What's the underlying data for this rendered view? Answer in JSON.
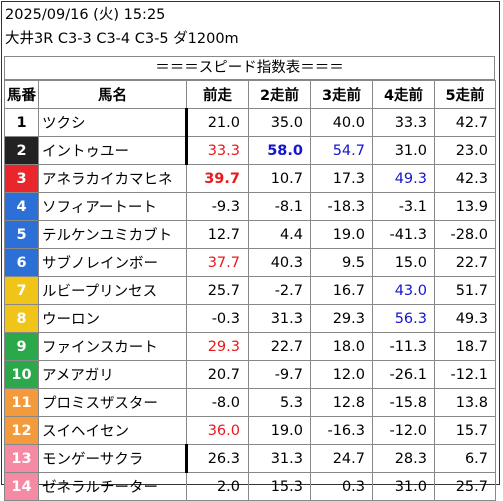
{
  "header": {
    "line1": "2025/09/16 (火) 15:25",
    "line2": "大井3R C3-3 C3-4 C3-5 ダ1200m"
  },
  "banner": "＝＝＝スピード指数表＝＝＝",
  "columns": [
    "馬番",
    "馬名",
    "前走",
    "2走前",
    "3走前",
    "4走前",
    "5走前"
  ],
  "colors": {
    "red": "#e8191c",
    "blue": "#1515cc",
    "black": "#000000"
  },
  "rows": [
    {
      "num": "1",
      "num_bg": "#ffffff",
      "num_fg": "#000000",
      "name": "ツクシ",
      "vals": [
        {
          "t": "21.0"
        },
        {
          "t": "35.0"
        },
        {
          "t": "40.0"
        },
        {
          "t": "33.3"
        },
        {
          "t": "42.7"
        }
      ]
    },
    {
      "num": "2",
      "num_bg": "#222222",
      "num_fg": "#ffffff",
      "name": "イントゥユー",
      "vals": [
        {
          "t": "33.3",
          "c": "red"
        },
        {
          "t": "58.0",
          "c": "blue",
          "b": true
        },
        {
          "t": "54.7",
          "c": "blue"
        },
        {
          "t": "31.0"
        },
        {
          "t": "23.0"
        }
      ]
    },
    {
      "num": "3",
      "num_bg": "#e8262c",
      "num_fg": "#ffffff",
      "name": "アネラカイカマヒネ",
      "vals": [
        {
          "t": "39.7",
          "c": "red",
          "b": true
        },
        {
          "t": "10.7"
        },
        {
          "t": "17.3"
        },
        {
          "t": "49.3",
          "c": "blue"
        },
        {
          "t": "42.3"
        }
      ]
    },
    {
      "num": "4",
      "num_bg": "#2c6fd6",
      "num_fg": "#ffffff",
      "name": "ソフィアートート",
      "vals": [
        {
          "t": "-9.3"
        },
        {
          "t": "-8.1"
        },
        {
          "t": "-18.3"
        },
        {
          "t": "-3.1"
        },
        {
          "t": "13.9"
        }
      ]
    },
    {
      "num": "5",
      "num_bg": "#2c6fd6",
      "num_fg": "#ffffff",
      "name": "テルケンユミカブト",
      "vals": [
        {
          "t": "12.7"
        },
        {
          "t": "4.4"
        },
        {
          "t": "19.0"
        },
        {
          "t": "-41.3"
        },
        {
          "t": "-28.0"
        }
      ]
    },
    {
      "num": "6",
      "num_bg": "#2c6fd6",
      "num_fg": "#ffffff",
      "name": "サブノレインボー",
      "vals": [
        {
          "t": "37.7",
          "c": "red"
        },
        {
          "t": "40.3"
        },
        {
          "t": "9.5"
        },
        {
          "t": "15.0"
        },
        {
          "t": "22.7"
        }
      ]
    },
    {
      "num": "7",
      "num_bg": "#f0c419",
      "num_fg": "#ffffff",
      "name": "ルビープリンセス",
      "vals": [
        {
          "t": "25.7"
        },
        {
          "t": "-2.7"
        },
        {
          "t": "16.7"
        },
        {
          "t": "43.0",
          "c": "blue"
        },
        {
          "t": "51.7"
        }
      ]
    },
    {
      "num": "8",
      "num_bg": "#f0c419",
      "num_fg": "#ffffff",
      "name": "ウーロン",
      "vals": [
        {
          "t": "-0.3"
        },
        {
          "t": "31.3"
        },
        {
          "t": "29.3"
        },
        {
          "t": "56.3",
          "c": "blue"
        },
        {
          "t": "49.3"
        }
      ]
    },
    {
      "num": "9",
      "num_bg": "#2ba84a",
      "num_fg": "#ffffff",
      "name": "ファインスカート",
      "vals": [
        {
          "t": "29.3",
          "c": "red"
        },
        {
          "t": "22.7"
        },
        {
          "t": "18.0"
        },
        {
          "t": "-11.3"
        },
        {
          "t": "18.7"
        }
      ]
    },
    {
      "num": "10",
      "num_bg": "#2ba84a",
      "num_fg": "#ffffff",
      "name": "アメアガリ",
      "vals": [
        {
          "t": "20.7"
        },
        {
          "t": "-9.7"
        },
        {
          "t": "12.0"
        },
        {
          "t": "-26.1"
        },
        {
          "t": "-12.1"
        }
      ]
    },
    {
      "num": "11",
      "num_bg": "#f39a3d",
      "num_fg": "#ffffff",
      "name": "プロミスザスター",
      "vals": [
        {
          "t": "-8.0"
        },
        {
          "t": "5.3"
        },
        {
          "t": "12.8"
        },
        {
          "t": "-15.8"
        },
        {
          "t": "13.8"
        }
      ]
    },
    {
      "num": "12",
      "num_bg": "#f39a3d",
      "num_fg": "#ffffff",
      "name": "スイヘイセン",
      "vals": [
        {
          "t": "36.0",
          "c": "red"
        },
        {
          "t": "19.0"
        },
        {
          "t": "-16.3"
        },
        {
          "t": "-12.0"
        },
        {
          "t": "15.7"
        }
      ]
    },
    {
      "num": "13",
      "num_bg": "#f48aa3",
      "num_fg": "#ffffff",
      "name": "モンゲーサクラ",
      "vals": [
        {
          "t": "26.3"
        },
        {
          "t": "31.3"
        },
        {
          "t": "24.7"
        },
        {
          "t": "28.3"
        },
        {
          "t": "6.7"
        }
      ]
    },
    {
      "num": "14",
      "num_bg": "#f48aa3",
      "num_fg": "#ffffff",
      "name": "ゼネラルチーター",
      "vals": [
        {
          "t": "2.0"
        },
        {
          "t": "15.3"
        },
        {
          "t": "0.3"
        },
        {
          "t": "31.0"
        },
        {
          "t": "25.7"
        }
      ]
    }
  ],
  "barred_name_rows": [
    0,
    1,
    12
  ]
}
